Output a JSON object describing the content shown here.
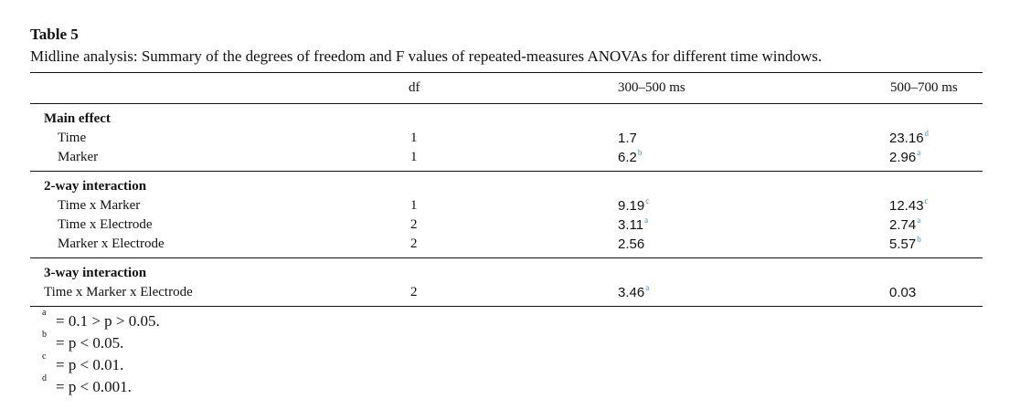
{
  "table": {
    "label": "Table 5",
    "caption": "Midline analysis: Summary of the degrees of freedom and F values of repeated-measures ANOVAs for different time windows.",
    "columns": {
      "label": "",
      "df": "df",
      "t1": "300–500 ms",
      "t2": "500–700 ms"
    },
    "groups": [
      {
        "title": "Main effect",
        "rows": [
          {
            "label": "Time",
            "df": "1",
            "t1": "1.7",
            "t1_sup": "",
            "t2": "23.16",
            "t2_sup": "d"
          },
          {
            "label": "Marker",
            "df": "1",
            "t1": "6.2",
            "t1_sup": "b",
            "t2": "2.96",
            "t2_sup": "a"
          }
        ]
      },
      {
        "title": "2-way interaction",
        "rows": [
          {
            "label": "Time x Marker",
            "df": "1",
            "t1": "9.19",
            "t1_sup": "c",
            "t2": "12.43",
            "t2_sup": "c"
          },
          {
            "label": "Time x Electrode",
            "df": "2",
            "t1": "3.11",
            "t1_sup": "a",
            "t2": "2.74",
            "t2_sup": "a"
          },
          {
            "label": "Marker x Electrode",
            "df": "2",
            "t1": "2.56",
            "t1_sup": "",
            "t2": "5.57",
            "t2_sup": "b"
          }
        ]
      },
      {
        "title": "3-way interaction",
        "rows": [
          {
            "label": "Time x Marker x Electrode",
            "df": "2",
            "t1": "3.46",
            "t1_sup": "a",
            "t2": "0.03",
            "t2_sup": ""
          }
        ]
      }
    ],
    "footnotes": [
      {
        "mark": "a",
        "text": "= 0.1 > p > 0.05."
      },
      {
        "mark": "b",
        "text": "= p < 0.05."
      },
      {
        "mark": "c",
        "text": "= p < 0.01."
      },
      {
        "mark": "d",
        "text": "= p < 0.001."
      }
    ],
    "colors": {
      "footnote_marker": "#3a8fc4",
      "text": "#111111"
    }
  }
}
